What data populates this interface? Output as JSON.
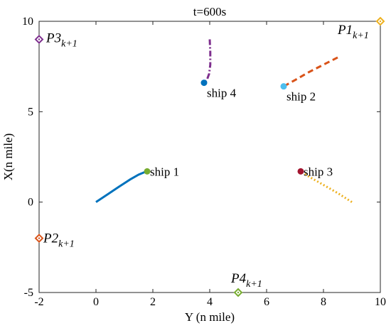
{
  "chart_data": {
    "type": "line",
    "title": "t=600s",
    "xlabel": "Y (n mile)",
    "ylabel": "X(n mile)",
    "xlim": [
      -2,
      10
    ],
    "ylim": [
      -5,
      10
    ],
    "xticks": [
      -2,
      0,
      2,
      4,
      6,
      8,
      10
    ],
    "yticks": [
      -5,
      0,
      5,
      10
    ],
    "xtick_labels": [
      "-2",
      "0",
      "2",
      "4",
      "6",
      "8",
      "10"
    ],
    "ytick_labels": [
      "-5",
      "0",
      "5",
      "10"
    ],
    "grid": false,
    "ships": [
      {
        "label": "ship 1",
        "line_color": "#0072BD",
        "line_style": "solid",
        "dot_color": "#77AC30",
        "x": [
          0,
          0.4,
          0.8,
          1.2,
          1.5,
          1.7,
          1.8
        ],
        "y": [
          0,
          0.42,
          0.84,
          1.25,
          1.52,
          1.65,
          1.7
        ],
        "position": [
          1.8,
          1.7
        ]
      },
      {
        "label": "ship 2",
        "line_color": "#D95319",
        "line_style": "dashed",
        "dot_color": "#4DBEEE",
        "x": [
          8.5,
          8.0,
          7.5,
          7.0,
          6.6
        ],
        "y": [
          8.0,
          7.6,
          7.2,
          6.75,
          6.4
        ],
        "position": [
          6.6,
          6.4
        ]
      },
      {
        "label": "ship 3",
        "line_color": "#EDB120",
        "line_style": "dotted",
        "dot_color": "#A2142F",
        "x": [
          9.0,
          8.5,
          8.0,
          7.5,
          7.2
        ],
        "y": [
          0.0,
          0.5,
          0.95,
          1.4,
          1.7
        ],
        "position": [
          7.2,
          1.7
        ]
      },
      {
        "label": "ship 4",
        "line_color": "#7E2F8E",
        "line_style": "dashdot",
        "dot_color": "#0072BD",
        "x": [
          4.0,
          4.02,
          4.02,
          3.98,
          3.9,
          3.8
        ],
        "y": [
          9.0,
          8.3,
          7.6,
          7.1,
          6.75,
          6.6
        ],
        "position": [
          3.8,
          6.6
        ]
      }
    ],
    "targets": [
      {
        "label": "P1",
        "subscript": "k+1",
        "x": 10,
        "y": 10,
        "color": "#EDB120"
      },
      {
        "label": "P2",
        "subscript": "k+1",
        "x": -2,
        "y": -2,
        "color": "#D95319"
      },
      {
        "label": "P3",
        "subscript": "k+1",
        "x": -2,
        "y": 9,
        "color": "#7E2F8E"
      },
      {
        "label": "P4",
        "subscript": "k+1",
        "x": 5,
        "y": -5,
        "color": "#77AC30"
      }
    ]
  }
}
